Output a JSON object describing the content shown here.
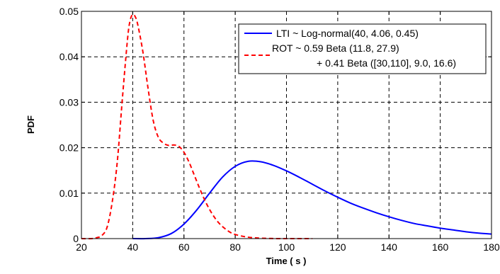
{
  "chart_data": {
    "type": "line",
    "title": "",
    "xlabel": "Time ( s )",
    "ylabel": "PDF",
    "xlim": [
      20,
      180
    ],
    "ylim": [
      0,
      0.05
    ],
    "xticks": [
      20,
      40,
      60,
      80,
      100,
      120,
      140,
      160,
      180
    ],
    "yticks": [
      0,
      0.01,
      0.02,
      0.03,
      0.04,
      0.05
    ],
    "xtick_labels": [
      "20",
      "40",
      "60",
      "80",
      "100",
      "120",
      "140",
      "160",
      "180"
    ],
    "ytick_labels": [
      "0",
      "0.01",
      "0.02",
      "0.03",
      "0.04",
      "0.05"
    ],
    "grid": true,
    "legend_position": "top-right",
    "series": [
      {
        "name": "LTI ~ Log-normal(40, 4.06, 0.45)",
        "color": "#0000ff",
        "line_style": "solid",
        "x": [
          40,
          45,
          50,
          55,
          60,
          65,
          70,
          75,
          80,
          85,
          90,
          95,
          100,
          105,
          110,
          115,
          120,
          125,
          130,
          135,
          140,
          145,
          150,
          155,
          160,
          165,
          170,
          175,
          180
        ],
        "y": [
          0,
          0.0,
          0.0002,
          0.0011,
          0.0032,
          0.0063,
          0.01,
          0.0135,
          0.0159,
          0.017,
          0.0169,
          0.0161,
          0.0149,
          0.0135,
          0.012,
          0.0105,
          0.0091,
          0.0078,
          0.0067,
          0.0057,
          0.0048,
          0.004,
          0.0033,
          0.0028,
          0.0023,
          0.0019,
          0.0015,
          0.0012,
          0.001
        ]
      },
      {
        "name_line1": "ROT ~ 0.59 Beta (11.8, 27.9)",
        "name_line2": "+ 0.41 Beta ([30,110], 9.0, 16.6)",
        "color": "#ff0000",
        "line_style": "dashed",
        "x": [
          20,
          24,
          26,
          28,
          30,
          32,
          34,
          36,
          38,
          39,
          40,
          41,
          42,
          44,
          46,
          48,
          50,
          52,
          54,
          56,
          58,
          60,
          62,
          64,
          66,
          68,
          70,
          72,
          74,
          76,
          78,
          80,
          84,
          88,
          92,
          96,
          100,
          110
        ],
        "y": [
          0,
          0,
          0.0002,
          0.0007,
          0.0025,
          0.008,
          0.017,
          0.031,
          0.044,
          0.048,
          0.0493,
          0.0488,
          0.047,
          0.041,
          0.033,
          0.026,
          0.0223,
          0.021,
          0.0205,
          0.0206,
          0.0203,
          0.019,
          0.0168,
          0.014,
          0.0112,
          0.0086,
          0.0064,
          0.0046,
          0.0032,
          0.0022,
          0.0014,
          0.0009,
          0.0004,
          0.00015,
          5e-05,
          1e-05,
          0,
          0
        ]
      }
    ]
  }
}
